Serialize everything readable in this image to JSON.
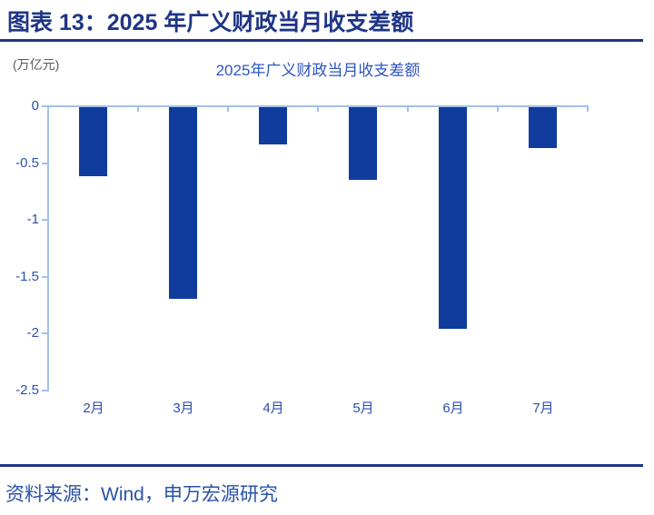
{
  "header": {
    "title": "图表 13：2025 年广义财政当月收支差额"
  },
  "chart_data": {
    "type": "bar",
    "title": "2025年广义财政当月收支差额",
    "unit_label": "(万亿元)",
    "categories": [
      "2月",
      "3月",
      "4月",
      "5月",
      "6月",
      "7月"
    ],
    "values": [
      -0.61,
      -1.69,
      -0.33,
      -0.64,
      -1.95,
      -0.36
    ],
    "xlabel": "",
    "ylabel": "万亿元",
    "ylim": [
      -2.5,
      0
    ],
    "yticks": [
      0,
      -0.5,
      -1,
      -1.5,
      -2,
      -2.5
    ],
    "grid": false,
    "legend": "none",
    "bar_color": "#103C9D",
    "axis_color": "#A3C0E8"
  },
  "footer": {
    "source": "资料来源：Wind，申万宏源研究"
  },
  "colors": {
    "header_navy": "#1F3587",
    "title_blue": "#2E56C0",
    "axis_label_blue": "#2B50B4",
    "unit_gray": "#58595B",
    "source_blue": "#2A52A8",
    "bar_blue": "#103C9D",
    "axis_light_blue": "#A3C0E8"
  }
}
